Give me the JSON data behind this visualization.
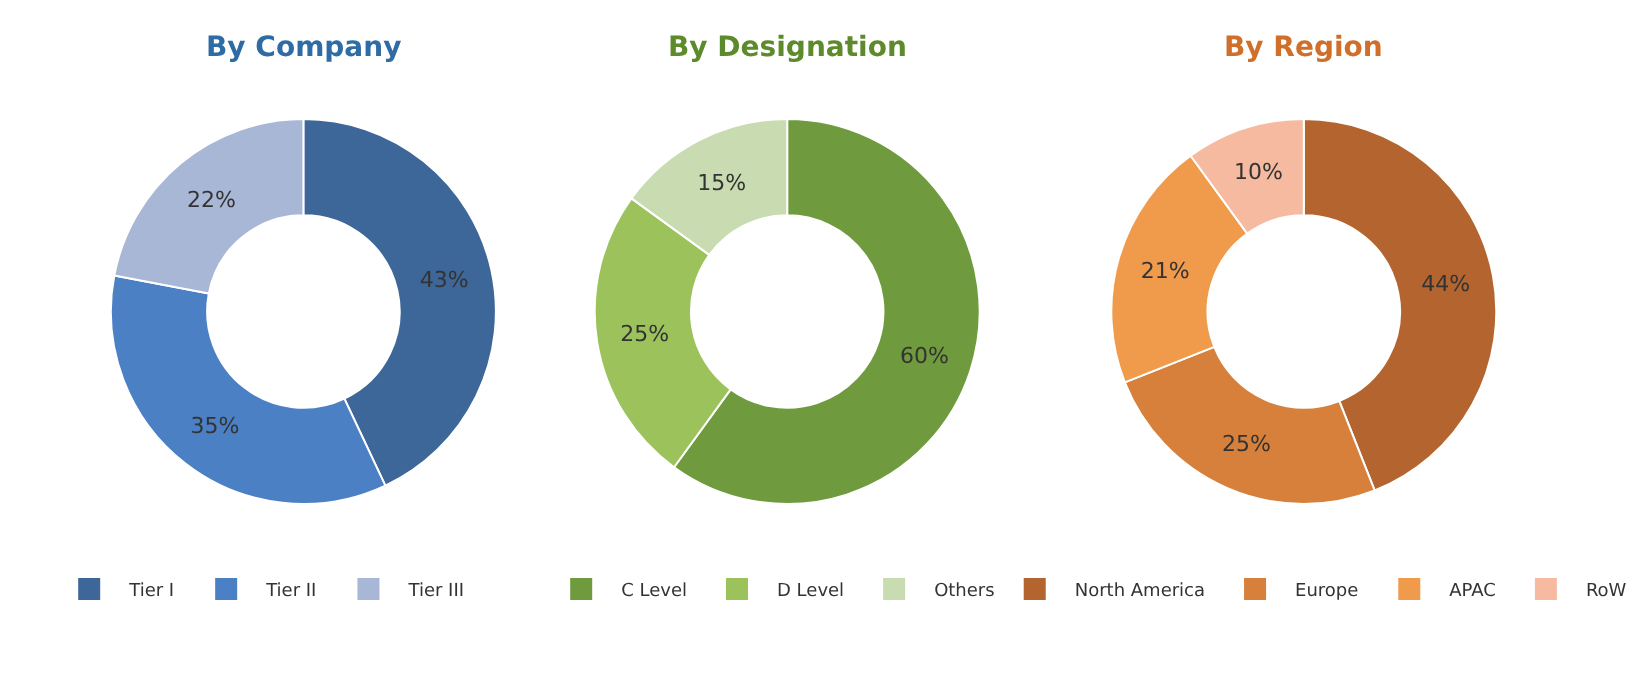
{
  "chart_data": [
    {
      "type": "donut",
      "title": "By Company",
      "categories": [
        "Tier I",
        "Tier II",
        "Tier III"
      ],
      "values": [
        43,
        35,
        22
      ],
      "colors": [
        "#3d6799",
        "#4b80c4",
        "#a8b7d6"
      ],
      "value_labels": [
        "43%",
        "35%",
        "22%"
      ],
      "legend": "bottom"
    },
    {
      "type": "donut",
      "title": "By Designation",
      "categories": [
        "C Level",
        "D Level",
        "Others"
      ],
      "values": [
        60,
        25,
        15
      ],
      "colors": [
        "#6f9a3d",
        "#9cc35b",
        "#c9dbb0"
      ],
      "value_labels": [
        "60%",
        "25%",
        "15%"
      ],
      "legend": "bottom"
    },
    {
      "type": "donut",
      "title": "By Region",
      "categories": [
        "North America",
        "Europe",
        "APAC",
        "RoW"
      ],
      "values": [
        44,
        25,
        21,
        10
      ],
      "colors": [
        "#b4652f",
        "#d6803b",
        "#f09b4c",
        "#f5baa0"
      ],
      "value_labels": [
        "44%",
        "25%",
        "21%",
        "10%"
      ],
      "legend": "bottom"
    }
  ]
}
